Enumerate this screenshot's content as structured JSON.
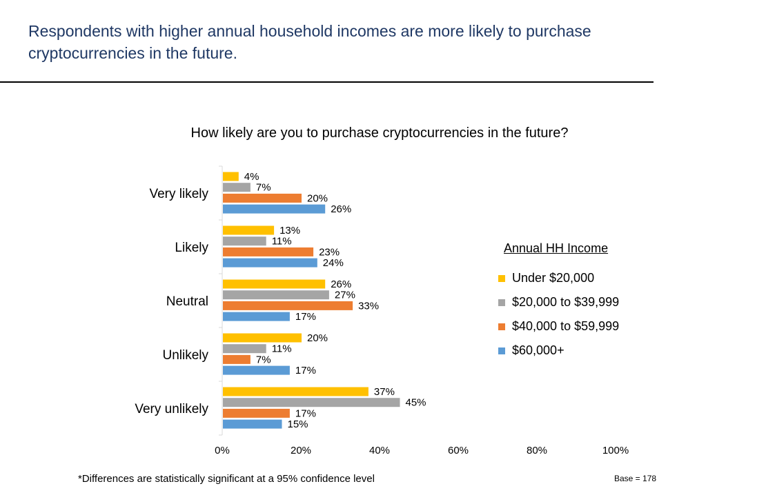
{
  "headline": "Respondents with higher annual household incomes are more likely to purchase cryptocurrencies in the future.",
  "footnote": "*Differences are statistically significant at a 95% confidence level",
  "base_note": "Base = 178",
  "chart_data": {
    "type": "bar",
    "orientation": "horizontal",
    "title": "How likely are you to purchase cryptocurrencies in the future?",
    "xlabel": "",
    "ylabel": "",
    "xlim": [
      0,
      100
    ],
    "x_ticks": [
      "0%",
      "20%",
      "40%",
      "60%",
      "80%",
      "100%"
    ],
    "grid": false,
    "legend_title": "Annual HH Income",
    "legend_position": "right",
    "value_suffix": "%",
    "categories": [
      "Very likely",
      "Likely",
      "Neutral",
      "Unlikely",
      "Very unlikely"
    ],
    "series": [
      {
        "name": "Under $20,000",
        "color": "#ffc000",
        "values": [
          4,
          13,
          26,
          20,
          37
        ]
      },
      {
        "name": "$20,000 to $39,999",
        "color": "#a5a5a5",
        "values": [
          7,
          11,
          27,
          11,
          45
        ]
      },
      {
        "name": "$40,000 to $59,999",
        "color": "#ed7d31",
        "values": [
          20,
          23,
          33,
          7,
          17
        ]
      },
      {
        "name": "$60,000+",
        "color": "#5b9bd5",
        "values": [
          26,
          24,
          17,
          17,
          15
        ]
      }
    ]
  }
}
